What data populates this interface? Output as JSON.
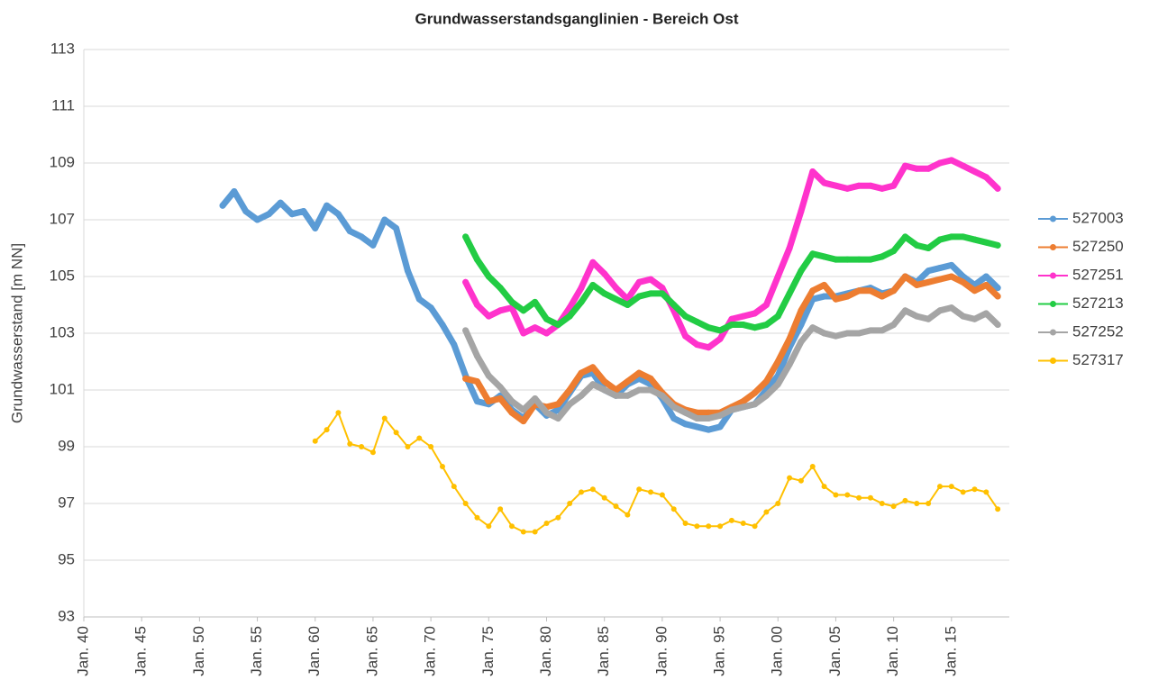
{
  "chart_data": {
    "type": "line",
    "title": "Grundwasserstandsganglinien  - Bereich Ost",
    "y_label": "Grundwasserstand [m NN]",
    "x": [
      1952,
      1953,
      1954,
      1955,
      1956,
      1957,
      1958,
      1959,
      1960,
      1961,
      1962,
      1963,
      1964,
      1965,
      1966,
      1967,
      1968,
      1969,
      1970,
      1971,
      1972,
      1973,
      1974,
      1975,
      1976,
      1977,
      1978,
      1979,
      1980,
      1981,
      1982,
      1983,
      1984,
      1985,
      1986,
      1987,
      1988,
      1989,
      1990,
      1991,
      1992,
      1993,
      1994,
      1995,
      1996,
      1997,
      1998,
      1999,
      2000,
      2001,
      2002,
      2003,
      2004,
      2005,
      2006,
      2007,
      2008,
      2009,
      2010,
      2011,
      2012,
      2013,
      2014,
      2015,
      2016,
      2017,
      2018,
      2019
    ],
    "series": [
      {
        "name": "527003",
        "color": "#5b9bd5",
        "values": [
          107.5,
          108.0,
          107.3,
          107.0,
          107.2,
          107.6,
          107.2,
          107.3,
          106.7,
          107.5,
          107.2,
          106.6,
          106.4,
          106.1,
          107.0,
          106.7,
          105.2,
          104.2,
          103.9,
          103.3,
          102.6,
          101.5,
          100.6,
          100.5,
          100.8,
          100.3,
          100.0,
          100.5,
          100.1,
          100.3,
          100.9,
          101.5,
          101.6,
          101.0,
          100.8,
          101.2,
          101.4,
          101.2,
          100.7,
          100.0,
          99.8,
          99.7,
          99.6,
          99.7,
          100.3,
          100.4,
          100.5,
          101.0,
          101.5,
          102.5,
          103.3,
          104.2,
          104.3,
          104.3,
          104.4,
          104.5,
          104.6,
          104.4,
          104.5,
          105.0,
          104.8,
          105.2,
          105.3,
          105.4,
          105.0,
          104.7,
          105.0,
          104.6
        ]
      },
      {
        "name": "527250",
        "color": "#ed7d31",
        "values": [
          null,
          null,
          null,
          null,
          null,
          null,
          null,
          null,
          null,
          null,
          null,
          null,
          null,
          null,
          null,
          null,
          null,
          null,
          null,
          null,
          null,
          101.4,
          101.3,
          100.6,
          100.7,
          100.2,
          99.9,
          100.5,
          100.4,
          100.5,
          101.0,
          101.6,
          101.8,
          101.3,
          101.0,
          101.3,
          101.6,
          101.4,
          100.9,
          100.5,
          100.3,
          100.2,
          100.2,
          100.2,
          100.4,
          100.6,
          100.9,
          101.3,
          102.0,
          102.8,
          103.8,
          104.5,
          104.7,
          104.2,
          104.3,
          104.5,
          104.5,
          104.3,
          104.5,
          105.0,
          104.7,
          104.8,
          104.9,
          105.0,
          104.8,
          104.5,
          104.7,
          104.3
        ]
      },
      {
        "name": "527251",
        "color": "#ff33cc",
        "values": [
          null,
          null,
          null,
          null,
          null,
          null,
          null,
          null,
          null,
          null,
          null,
          null,
          null,
          null,
          null,
          null,
          null,
          null,
          null,
          null,
          null,
          104.8,
          104.0,
          103.6,
          103.8,
          103.9,
          103.0,
          103.2,
          103.0,
          103.3,
          103.9,
          104.6,
          105.5,
          105.1,
          104.6,
          104.2,
          104.8,
          104.9,
          104.6,
          103.8,
          102.9,
          102.6,
          102.5,
          102.8,
          103.5,
          103.6,
          103.7,
          104.0,
          105.0,
          106.0,
          107.3,
          108.7,
          108.3,
          108.2,
          108.1,
          108.2,
          108.2,
          108.1,
          108.2,
          108.9,
          108.8,
          108.8,
          109.0,
          109.1,
          108.9,
          108.7,
          108.5,
          108.1
        ]
      },
      {
        "name": "527213",
        "color": "#22cc44",
        "values": [
          null,
          null,
          null,
          null,
          null,
          null,
          null,
          null,
          null,
          null,
          null,
          null,
          null,
          null,
          null,
          null,
          null,
          null,
          null,
          null,
          null,
          106.4,
          105.6,
          105.0,
          104.6,
          104.1,
          103.8,
          104.1,
          103.5,
          103.3,
          103.6,
          104.1,
          104.7,
          104.4,
          104.2,
          104.0,
          104.3,
          104.4,
          104.4,
          104.0,
          103.6,
          103.4,
          103.2,
          103.1,
          103.3,
          103.3,
          103.2,
          103.3,
          103.6,
          104.4,
          105.2,
          105.8,
          105.7,
          105.6,
          105.6,
          105.6,
          105.6,
          105.7,
          105.9,
          106.4,
          106.1,
          106.0,
          106.3,
          106.4,
          106.4,
          106.3,
          106.2,
          106.1
        ]
      },
      {
        "name": "527252",
        "color": "#a5a5a5",
        "values": [
          null,
          null,
          null,
          null,
          null,
          null,
          null,
          null,
          null,
          null,
          null,
          null,
          null,
          null,
          null,
          null,
          null,
          null,
          null,
          null,
          null,
          103.1,
          102.2,
          101.5,
          101.1,
          100.6,
          100.3,
          100.7,
          100.2,
          100.0,
          100.5,
          100.8,
          101.2,
          101.0,
          100.8,
          100.8,
          101.0,
          101.0,
          100.8,
          100.4,
          100.2,
          100.0,
          100.0,
          100.1,
          100.3,
          100.4,
          100.5,
          100.8,
          101.2,
          101.9,
          102.7,
          103.2,
          103.0,
          102.9,
          103.0,
          103.0,
          103.1,
          103.1,
          103.3,
          103.8,
          103.6,
          103.5,
          103.8,
          103.9,
          103.6,
          103.5,
          103.7,
          103.3
        ]
      },
      {
        "name": "527317",
        "color": "#ffc000",
        "values": [
          null,
          null,
          null,
          null,
          null,
          null,
          null,
          null,
          99.2,
          99.6,
          100.2,
          99.1,
          99.0,
          98.8,
          100.0,
          99.5,
          99.0,
          99.3,
          99.0,
          98.3,
          97.6,
          97.0,
          96.5,
          96.2,
          96.8,
          96.2,
          96.0,
          96.0,
          96.3,
          96.5,
          97.0,
          97.4,
          97.5,
          97.2,
          96.9,
          96.6,
          97.5,
          97.4,
          97.3,
          96.8,
          96.3,
          96.2,
          96.2,
          96.2,
          96.4,
          96.3,
          96.2,
          96.7,
          97.0,
          97.9,
          97.8,
          98.3,
          97.6,
          97.3,
          97.3,
          97.2,
          97.2,
          97.0,
          96.9,
          97.1,
          97.0,
          97.0,
          97.6,
          97.6,
          97.4,
          97.5,
          97.4,
          96.8
        ]
      }
    ],
    "xlim": [
      1940,
      2020
    ],
    "xticks": [
      {
        "value": 1940,
        "label": "Jan. 40"
      },
      {
        "value": 1945,
        "label": "Jan. 45"
      },
      {
        "value": 1950,
        "label": "Jan. 50"
      },
      {
        "value": 1955,
        "label": "Jan. 55"
      },
      {
        "value": 1960,
        "label": "Jan. 60"
      },
      {
        "value": 1965,
        "label": "Jan. 65"
      },
      {
        "value": 1970,
        "label": "Jan. 70"
      },
      {
        "value": 1975,
        "label": "Jan. 75"
      },
      {
        "value": 1980,
        "label": "Jan. 80"
      },
      {
        "value": 1985,
        "label": "Jan. 85"
      },
      {
        "value": 1990,
        "label": "Jan. 90"
      },
      {
        "value": 1995,
        "label": "Jan. 95"
      },
      {
        "value": 2000,
        "label": "Jan. 00"
      },
      {
        "value": 2005,
        "label": "Jan. 05"
      },
      {
        "value": 2010,
        "label": "Jan. 10"
      },
      {
        "value": 2015,
        "label": "Jan. 15"
      }
    ],
    "ylim": [
      93,
      113
    ],
    "yticks": [
      93,
      95,
      97,
      99,
      101,
      103,
      105,
      107,
      109,
      111,
      113
    ],
    "grid": true,
    "legend": "right"
  }
}
